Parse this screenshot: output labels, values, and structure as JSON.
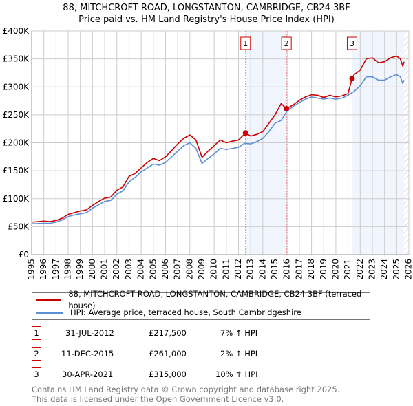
{
  "title": "88, MITCHCROFT ROAD, LONGSTANTON, CAMBRIDGE, CB24 3BF",
  "subtitle": "Price paid vs. HM Land Registry's House Price Index (HPI)",
  "chart_data": {
    "type": "line",
    "title": "88, MITCHCROFT ROAD, LONGSTANTON, CAMBRIDGE, CB24 3BF",
    "subtitle": "Price paid vs. HM Land Registry's House Price Index (HPI)",
    "xlim": [
      1995,
      2026
    ],
    "ylim": [
      0,
      400000
    ],
    "x_ticks": [
      "1995",
      "1996",
      "1997",
      "1998",
      "1999",
      "2000",
      "2001",
      "2002",
      "2003",
      "2004",
      "2005",
      "2006",
      "2007",
      "2008",
      "2009",
      "2010",
      "2011",
      "2012",
      "2013",
      "2014",
      "2015",
      "2016",
      "2017",
      "2018",
      "2019",
      "2020",
      "2021",
      "2022",
      "2023",
      "2024",
      "2025",
      "2026"
    ],
    "y_ticks": [
      {
        "v": 0,
        "l": "£0"
      },
      {
        "v": 50000,
        "l": "£50K"
      },
      {
        "v": 100000,
        "l": "£100K"
      },
      {
        "v": 150000,
        "l": "£150K"
      },
      {
        "v": 200000,
        "l": "£200K"
      },
      {
        "v": 250000,
        "l": "£250K"
      },
      {
        "v": 300000,
        "l": "£300K"
      },
      {
        "v": 350000,
        "l": "£350K"
      },
      {
        "v": 400000,
        "l": "£400K"
      }
    ],
    "grid": true,
    "series": [
      {
        "name": "88, MITCHCROFT ROAD, LONGSTANTON, CAMBRIDGE, CB24 3BF (terraced house)",
        "color": "#cc0000",
        "x": [
          1995,
          1996,
          1996.5,
          1997,
          1997.5,
          1998,
          1998.5,
          1999,
          1999.5,
          2000,
          2000.5,
          2001,
          2001.5,
          2002,
          2002.5,
          2003,
          2003.5,
          2004,
          2004.5,
          2005,
          2005.5,
          2006,
          2006.5,
          2007,
          2007.5,
          2008,
          2008.5,
          2009,
          2009.5,
          2010,
          2010.5,
          2011,
          2011.5,
          2012,
          2012.58,
          2013,
          2013.5,
          2014,
          2014.5,
          2015,
          2015.5,
          2015.94,
          2016.5,
          2017,
          2017.5,
          2018,
          2018.5,
          2019,
          2019.5,
          2020,
          2020.5,
          2021,
          2021.33,
          2021.5,
          2022,
          2022.5,
          2023,
          2023.5,
          2024,
          2024.5,
          2025,
          2025.3,
          2025.5,
          2025.6
        ],
        "y": [
          58000,
          60000,
          59000,
          61000,
          65000,
          72000,
          75000,
          78000,
          80000,
          88000,
          95000,
          101000,
          103000,
          115000,
          121000,
          140000,
          145000,
          155000,
          165000,
          172000,
          168000,
          175000,
          186000,
          198000,
          208000,
          214000,
          205000,
          174000,
          185000,
          195000,
          205000,
          200000,
          203000,
          205000,
          217500,
          212000,
          215000,
          220000,
          235000,
          250000,
          270000,
          261000,
          268000,
          276000,
          282000,
          286000,
          285000,
          281000,
          285000,
          282000,
          284000,
          288000,
          315000,
          322000,
          330000,
          350000,
          352000,
          343000,
          345000,
          352000,
          355000,
          350000,
          337000,
          345000
        ]
      },
      {
        "name": "HPI: Average price, terraced house, South Cambridgeshire",
        "color": "#5b8fd6",
        "x": [
          1995,
          1996,
          1996.5,
          1997,
          1997.5,
          1998,
          1998.5,
          1999,
          1999.5,
          2000,
          2000.5,
          2001,
          2001.5,
          2002,
          2002.5,
          2003,
          2003.5,
          2004,
          2004.5,
          2005,
          2005.5,
          2006,
          2006.5,
          2007,
          2007.5,
          2008,
          2008.5,
          2009,
          2009.5,
          2010,
          2010.5,
          2011,
          2011.5,
          2012,
          2012.5,
          2013,
          2013.5,
          2014,
          2014.5,
          2015,
          2015.5,
          2016,
          2016.5,
          2017,
          2017.5,
          2018,
          2018.5,
          2019,
          2019.5,
          2020,
          2020.5,
          2021,
          2021.5,
          2022,
          2022.5,
          2023,
          2023.5,
          2024,
          2024.5,
          2025,
          2025.3,
          2025.5,
          2025.6
        ],
        "y": [
          55000,
          56000,
          56000,
          58000,
          62000,
          68000,
          71000,
          73000,
          75000,
          83000,
          89000,
          95000,
          97000,
          108000,
          114000,
          130000,
          138000,
          148000,
          155000,
          162000,
          160000,
          165000,
          175000,
          185000,
          195000,
          200000,
          190000,
          163000,
          172000,
          180000,
          190000,
          188000,
          190000,
          192000,
          199000,
          198000,
          202000,
          208000,
          220000,
          235000,
          240000,
          257000,
          265000,
          272000,
          278000,
          282000,
          280000,
          278000,
          280000,
          278000,
          280000,
          285000,
          292000,
          302000,
          318000,
          318000,
          312000,
          312000,
          318000,
          322000,
          318000,
          306000,
          312000
        ]
      }
    ],
    "sales": [
      {
        "label": "1",
        "x": 2012.58,
        "y": 217500,
        "date": "31-JUL-2012",
        "price": "£217,500",
        "hpi": "7% ↑ HPI"
      },
      {
        "label": "2",
        "x": 2015.94,
        "y": 261000,
        "date": "11-DEC-2015",
        "price": "£261,000",
        "hpi": "2% ↑ HPI"
      },
      {
        "label": "3",
        "x": 2021.33,
        "y": 315000,
        "date": "30-APR-2021",
        "price": "£315,000",
        "hpi": "10% ↑ HPI"
      }
    ],
    "legend_position": "below"
  },
  "footer": {
    "line1": "Contains HM Land Registry data © Crown copyright and database right 2025.",
    "line2": "This data is licensed under the Open Government Licence v3.0."
  }
}
